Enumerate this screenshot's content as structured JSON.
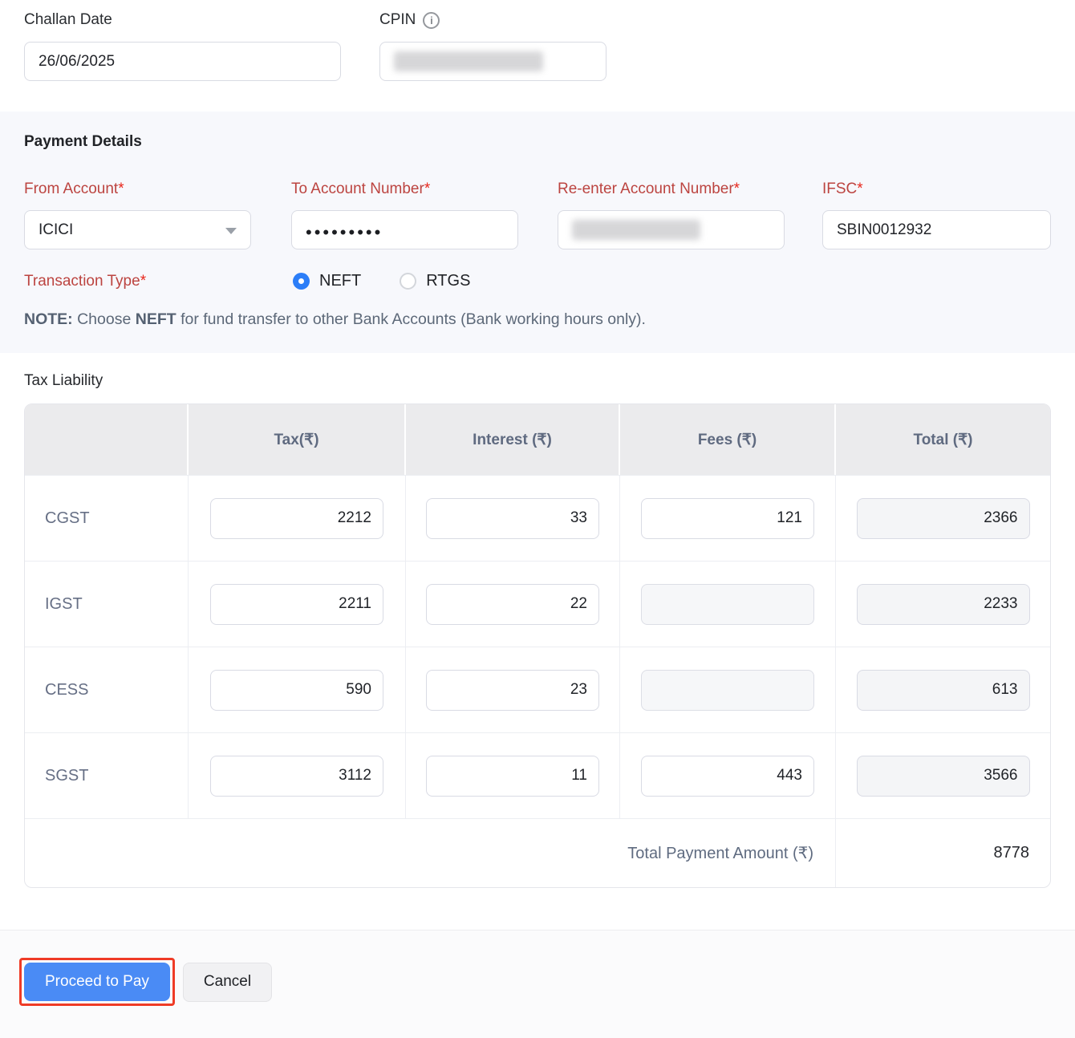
{
  "colors": {
    "accent_blue": "#4a8bf5",
    "radio_blue": "#2c7ef8",
    "label_red": "#bc4440",
    "asterisk_red": "#e8261b",
    "highlight_red": "#ef3b26",
    "band_background": "#f7f8fc",
    "table_header_background": "#ebebed",
    "slate_text": "#5f6a80"
  },
  "top": {
    "challan_date": {
      "label": "Challan Date",
      "value": "26/06/2025"
    },
    "cpin": {
      "label": "CPIN",
      "info_icon": "info-icon",
      "value_redacted": true
    }
  },
  "payment_details": {
    "title": "Payment Details",
    "fields": {
      "from_account": {
        "label": "From Account",
        "required": "*",
        "value": "ICICI"
      },
      "to_account_number": {
        "label": "To Account Number",
        "required": "*",
        "value": "•••••••••"
      },
      "reenter_account_number": {
        "label": "Re-enter Account Number",
        "required": "*",
        "value_redacted": true
      },
      "ifsc": {
        "label": "IFSC",
        "required": "*",
        "value": "SBIN0012932"
      }
    },
    "transaction_type": {
      "label": "Transaction Type",
      "required": "*",
      "options": [
        {
          "label": "NEFT",
          "selected": true
        },
        {
          "label": "RTGS",
          "selected": false
        }
      ]
    },
    "note": {
      "prefix_bold": "NOTE:",
      "middle": " Choose ",
      "neft_bold": "NEFT",
      "suffix": " for fund transfer to other Bank Accounts (Bank working hours only)."
    }
  },
  "tax_liability": {
    "title": "Tax Liability",
    "headers": {
      "tax": "Tax(₹)",
      "interest": "Interest (₹)",
      "fees": "Fees (₹)",
      "total": "Total (₹)"
    },
    "rows": [
      {
        "label": "CGST",
        "tax": "2212",
        "interest": "33",
        "fees": "121",
        "total": "2366"
      },
      {
        "label": "IGST",
        "tax": "2211",
        "interest": "22",
        "fees": "",
        "total": "2233"
      },
      {
        "label": "CESS",
        "tax": "590",
        "interest": "23",
        "fees": "",
        "total": "613"
      },
      {
        "label": "SGST",
        "tax": "3112",
        "interest": "11",
        "fees": "443",
        "total": "3566"
      }
    ],
    "total_row": {
      "label": "Total Payment Amount (₹)",
      "value": "8778"
    }
  },
  "footer": {
    "proceed_button": "Proceed to Pay",
    "cancel_button": "Cancel"
  }
}
